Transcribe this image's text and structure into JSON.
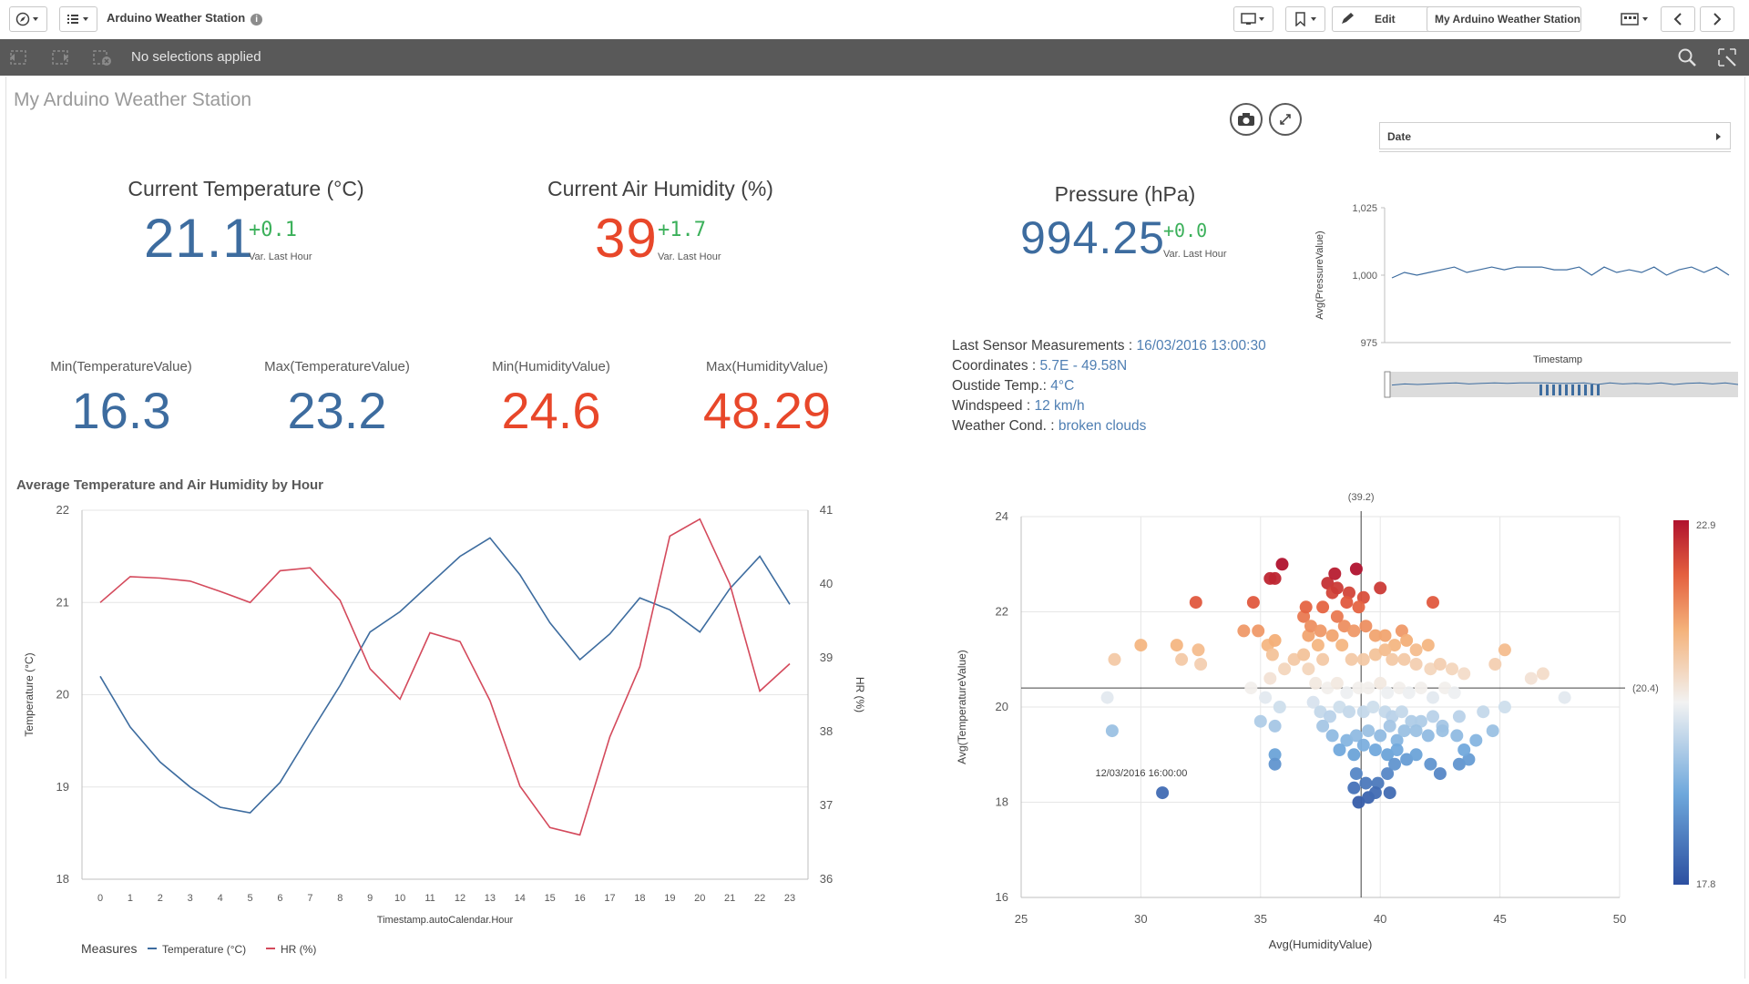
{
  "app": {
    "title": "Arduino Weather Station",
    "info_icon": "info-icon",
    "edit_label": "Edit",
    "sheet_selector": "My Arduino Weather Station",
    "selections_text": "No selections applied"
  },
  "sheet": {
    "title": "My Arduino Weather Station"
  },
  "kpis": {
    "temperature": {
      "title": "Current Temperature (°C)",
      "value": "21.1",
      "variation": "+0.1",
      "variation_label": "Var. Last Hour"
    },
    "humidity": {
      "title": "Current Air Humidity (%)",
      "value": "39",
      "variation": "+1.7",
      "variation_label": "Var. Last Hour"
    },
    "pressure": {
      "title": "Pressure (hPa)",
      "value": "994.25",
      "variation": "+0.0",
      "variation_label": "Var. Last Hour"
    }
  },
  "minmax": [
    {
      "title": "Min(TemperatureValue)",
      "value": "16.3",
      "color": "#3d6c9f"
    },
    {
      "title": "Max(TemperatureValue)",
      "value": "23.2",
      "color": "#3d6c9f"
    },
    {
      "title": "Min(HumidityValue)",
      "value": "24.6",
      "color": "#e8472a"
    },
    {
      "title": "Max(HumidityValue)",
      "value": "48.29",
      "color": "#e8472a"
    }
  ],
  "sensor_info": {
    "last_label": "Last Sensor Measurements : ",
    "last_value": "16/03/2016 13:00:30",
    "coord_label": "Coordinates : ",
    "coord_value": "5.7E - 49.58N",
    "outside_label": "Oustide Temp.: ",
    "outside_value": "4°C",
    "wind_label": "Windspeed : ",
    "wind_value": "12 km/h",
    "weather_label": "Weather Cond. : ",
    "weather_value": "broken clouds"
  },
  "date_filter": {
    "label": "Date"
  },
  "colors": {
    "temperature": "#3d6c9f",
    "humidity": "#d44a5c",
    "kpi_blue": "#3d6c9f",
    "kpi_red": "#e8472a",
    "variation_green": "#3bb05a"
  },
  "chart_data": [
    {
      "type": "line",
      "title": "Average Temperature and Air Humidity by Hour",
      "xlabel": "Timestamp.autoCalendar.Hour",
      "ylabel": "Temperature (°C)",
      "y2label": "HR (%)",
      "legend_title": "Measures",
      "categories": [
        "0",
        "1",
        "2",
        "3",
        "4",
        "5",
        "6",
        "7",
        "8",
        "9",
        "10",
        "11",
        "12",
        "13",
        "14",
        "15",
        "16",
        "17",
        "18",
        "19",
        "20",
        "21",
        "22",
        "23"
      ],
      "y_ticks": [
        "22",
        "21",
        "20",
        "19",
        "18"
      ],
      "y2_ticks": [
        "41",
        "40",
        "39",
        "38",
        "37",
        "36"
      ],
      "ylim": [
        18,
        22
      ],
      "y2lim": [
        36,
        41
      ],
      "series": [
        {
          "name": "Temperature (°C)",
          "axis": "left",
          "values": [
            20.2,
            19.65,
            19.27,
            19.0,
            18.78,
            18.72,
            19.05,
            19.58,
            20.1,
            20.68,
            20.9,
            21.2,
            21.5,
            21.7,
            21.3,
            20.78,
            20.38,
            20.66,
            21.05,
            20.92,
            20.68,
            21.15,
            21.5,
            20.98
          ]
        },
        {
          "name": "HR (%)",
          "axis": "left_aligned_right",
          "values": [
            39.75,
            40.1,
            40.08,
            40.04,
            39.9,
            39.75,
            40.18,
            40.22,
            39.78,
            38.85,
            38.44,
            39.34,
            39.22,
            38.42,
            37.26,
            36.7,
            36.6,
            37.93,
            38.88,
            40.65,
            40.88,
            40.0,
            38.55,
            38.92
          ]
        }
      ]
    },
    {
      "type": "line",
      "title": "",
      "xlabel": "Timestamp",
      "ylabel": "Avg(PressureValue)",
      "y_ticks": [
        "1,025",
        "1,000",
        "975"
      ],
      "ylim": [
        975,
        1025
      ],
      "series": [
        {
          "name": "Avg(PressureValue)",
          "values": [
            999,
            1001,
            1000,
            1001,
            1002,
            1003,
            1001,
            1002,
            1003,
            1002,
            1003,
            1003,
            1003,
            1002,
            1002,
            1003,
            1000,
            1003,
            1001,
            1002,
            1001,
            1003,
            1000,
            1002,
            1003,
            1001,
            1003,
            1000
          ]
        }
      ]
    },
    {
      "type": "scatter",
      "xlabel": "Avg(HumidityValue)",
      "ylabel": "Avg(TemperatureValue)",
      "x_ticks": [
        "25",
        "30",
        "35",
        "40",
        "45",
        "50"
      ],
      "y_ticks": [
        "24",
        "22",
        "20",
        "18",
        "16"
      ],
      "xlim": [
        25,
        50
      ],
      "ylim": [
        16,
        24
      ],
      "ref_x": 39.2,
      "ref_x_label": "(39.2)",
      "ref_y": 20.4,
      "ref_y_label": "(20.4)",
      "annotation": "12/03/2016 16:00:00",
      "color_scale": {
        "min": 17.8,
        "max": 22.9,
        "min_label": "17.8",
        "max_label": "22.9"
      },
      "points": [
        [
          30.9,
          18.2
        ],
        [
          28.8,
          19.5
        ],
        [
          28.6,
          20.2
        ],
        [
          28.9,
          21.0
        ],
        [
          30.0,
          21.3
        ],
        [
          31.5,
          21.3
        ],
        [
          31.7,
          21.0
        ],
        [
          32.4,
          21.2
        ],
        [
          32.5,
          20.9
        ],
        [
          32.3,
          22.2
        ],
        [
          34.3,
          21.6
        ],
        [
          34.9,
          21.6
        ],
        [
          35.3,
          21.3
        ],
        [
          35.6,
          21.4
        ],
        [
          34.7,
          22.2
        ],
        [
          35.4,
          22.7
        ],
        [
          35.6,
          22.7
        ],
        [
          35.9,
          23.0
        ],
        [
          35.5,
          21.1
        ],
        [
          35.4,
          20.6
        ],
        [
          35.2,
          20.2
        ],
        [
          34.6,
          20.4
        ],
        [
          35.0,
          19.7
        ],
        [
          35.6,
          19.6
        ],
        [
          35.6,
          19.0
        ],
        [
          35.6,
          18.8
        ],
        [
          35.8,
          20.0
        ],
        [
          36.0,
          20.8
        ],
        [
          36.4,
          21.0
        ],
        [
          36.8,
          21.1
        ],
        [
          37.0,
          21.5
        ],
        [
          37.4,
          21.3
        ],
        [
          37.6,
          21.0
        ],
        [
          36.8,
          21.9
        ],
        [
          36.9,
          22.1
        ],
        [
          37.1,
          21.7
        ],
        [
          37.6,
          22.1
        ],
        [
          37.8,
          22.6
        ],
        [
          38.0,
          22.4
        ],
        [
          38.1,
          22.8
        ],
        [
          38.2,
          22.5
        ],
        [
          38.7,
          22.4
        ],
        [
          39.0,
          22.9
        ],
        [
          39.3,
          22.3
        ],
        [
          38.6,
          22.2
        ],
        [
          39.1,
          22.1
        ],
        [
          38.5,
          21.7
        ],
        [
          38.9,
          21.6
        ],
        [
          39.4,
          21.7
        ],
        [
          39.8,
          21.5
        ],
        [
          40.2,
          21.5
        ],
        [
          40.6,
          21.3
        ],
        [
          40.9,
          21.6
        ],
        [
          41.1,
          21.4
        ],
        [
          41.5,
          21.2
        ],
        [
          42.0,
          21.3
        ],
        [
          42.2,
          22.2
        ],
        [
          40.0,
          22.5
        ],
        [
          38.2,
          21.9
        ],
        [
          38.0,
          21.5
        ],
        [
          37.5,
          21.6
        ],
        [
          38.4,
          21.3
        ],
        [
          38.8,
          21.0
        ],
        [
          39.3,
          21.0
        ],
        [
          39.8,
          21.1
        ],
        [
          40.2,
          21.2
        ],
        [
          40.5,
          21.0
        ],
        [
          41.0,
          21.0
        ],
        [
          41.5,
          20.9
        ],
        [
          42.1,
          20.8
        ],
        [
          42.5,
          20.9
        ],
        [
          43.0,
          20.8
        ],
        [
          43.5,
          20.7
        ],
        [
          45.2,
          21.2
        ],
        [
          44.8,
          20.9
        ],
        [
          46.3,
          20.6
        ],
        [
          46.8,
          20.7
        ],
        [
          47.7,
          20.2
        ],
        [
          37.0,
          20.8
        ],
        [
          37.3,
          20.5
        ],
        [
          37.8,
          20.4
        ],
        [
          38.2,
          20.5
        ],
        [
          38.6,
          20.3
        ],
        [
          39.1,
          20.4
        ],
        [
          39.5,
          20.4
        ],
        [
          40.0,
          20.5
        ],
        [
          40.3,
          20.3
        ],
        [
          40.8,
          20.4
        ],
        [
          41.2,
          20.3
        ],
        [
          41.7,
          20.4
        ],
        [
          42.2,
          20.2
        ],
        [
          42.7,
          20.4
        ],
        [
          43.1,
          20.3
        ],
        [
          37.2,
          20.1
        ],
        [
          37.5,
          19.9
        ],
        [
          37.9,
          19.8
        ],
        [
          38.3,
          20.0
        ],
        [
          38.7,
          19.9
        ],
        [
          39.3,
          19.9
        ],
        [
          39.7,
          20.0
        ],
        [
          40.2,
          19.9
        ],
        [
          40.5,
          19.8
        ],
        [
          40.9,
          19.9
        ],
        [
          41.3,
          19.7
        ],
        [
          41.7,
          19.7
        ],
        [
          42.2,
          19.8
        ],
        [
          42.6,
          19.6
        ],
        [
          43.3,
          19.8
        ],
        [
          44.3,
          19.9
        ],
        [
          45.2,
          20.0
        ],
        [
          37.6,
          19.6
        ],
        [
          38.0,
          19.4
        ],
        [
          38.6,
          19.3
        ],
        [
          39.0,
          19.4
        ],
        [
          39.5,
          19.5
        ],
        [
          40.0,
          19.4
        ],
        [
          40.4,
          19.6
        ],
        [
          40.7,
          19.3
        ],
        [
          41.0,
          19.5
        ],
        [
          41.5,
          19.5
        ],
        [
          42.0,
          19.4
        ],
        [
          42.6,
          19.5
        ],
        [
          43.2,
          19.4
        ],
        [
          44.0,
          19.3
        ],
        [
          44.7,
          19.5
        ],
        [
          38.3,
          19.1
        ],
        [
          38.9,
          19.0
        ],
        [
          39.3,
          19.2
        ],
        [
          39.8,
          19.1
        ],
        [
          40.3,
          19.0
        ],
        [
          40.7,
          19.1
        ],
        [
          41.1,
          18.9
        ],
        [
          41.5,
          19.0
        ],
        [
          42.1,
          18.8
        ],
        [
          43.3,
          18.8
        ],
        [
          43.7,
          18.9
        ],
        [
          43.5,
          19.1
        ],
        [
          42.5,
          18.6
        ],
        [
          39.0,
          18.6
        ],
        [
          39.4,
          18.4
        ],
        [
          39.9,
          18.4
        ],
        [
          40.3,
          18.6
        ],
        [
          40.6,
          18.8
        ],
        [
          39.1,
          18.0
        ],
        [
          39.5,
          18.1
        ],
        [
          39.8,
          18.2
        ],
        [
          38.9,
          18.3
        ],
        [
          40.4,
          18.2
        ]
      ]
    }
  ]
}
